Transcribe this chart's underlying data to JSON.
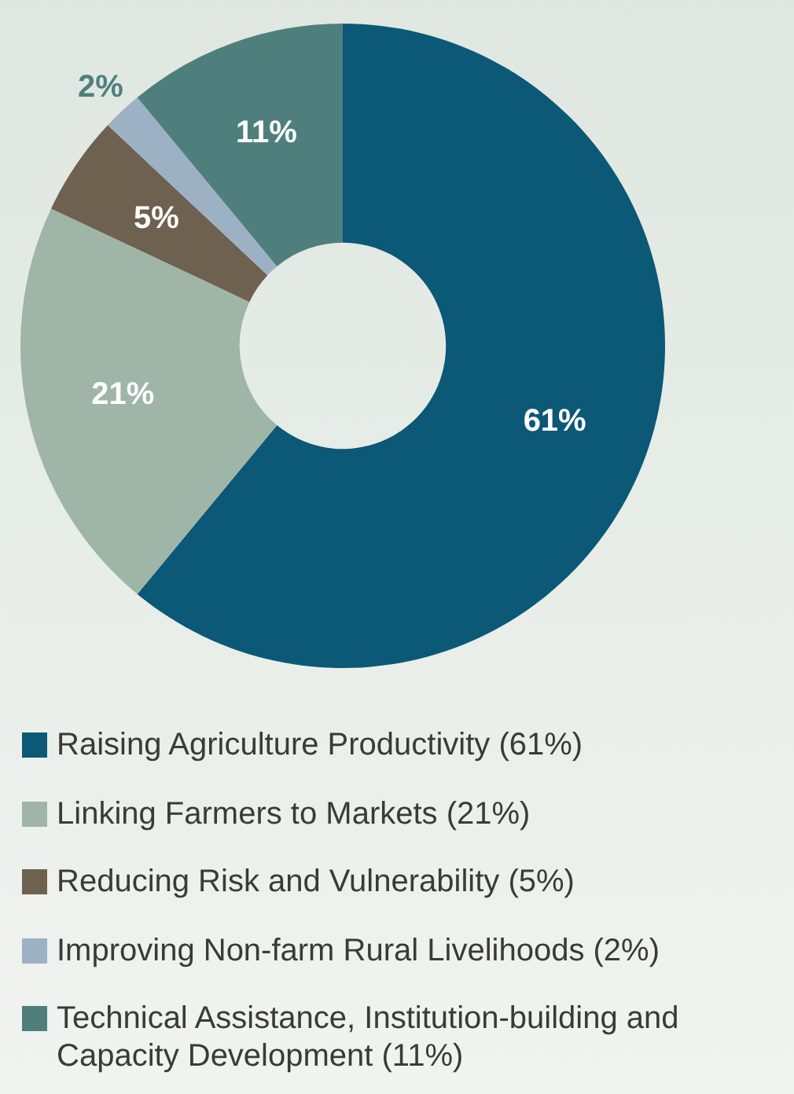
{
  "chart_data": {
    "type": "donut",
    "categories": [
      "Raising Agriculture Productivity (61%)",
      "Linking Farmers to Markets (21%)",
      "Reducing Risk and Vulnerability (5%)",
      "Improving Non-farm Rural Livelihoods (2%)",
      "Technical Assistance, Institution-building and Capacity Development (11%)"
    ],
    "values": [
      61,
      21,
      5,
      2,
      11
    ],
    "value_labels": [
      "61%",
      "21%",
      "5%",
      "2%",
      "11%"
    ],
    "colors": [
      "#0b5877",
      "#9fb5a8",
      "#6e6150",
      "#9db1c4",
      "#4f7f7d"
    ],
    "legend": "bottom"
  }
}
